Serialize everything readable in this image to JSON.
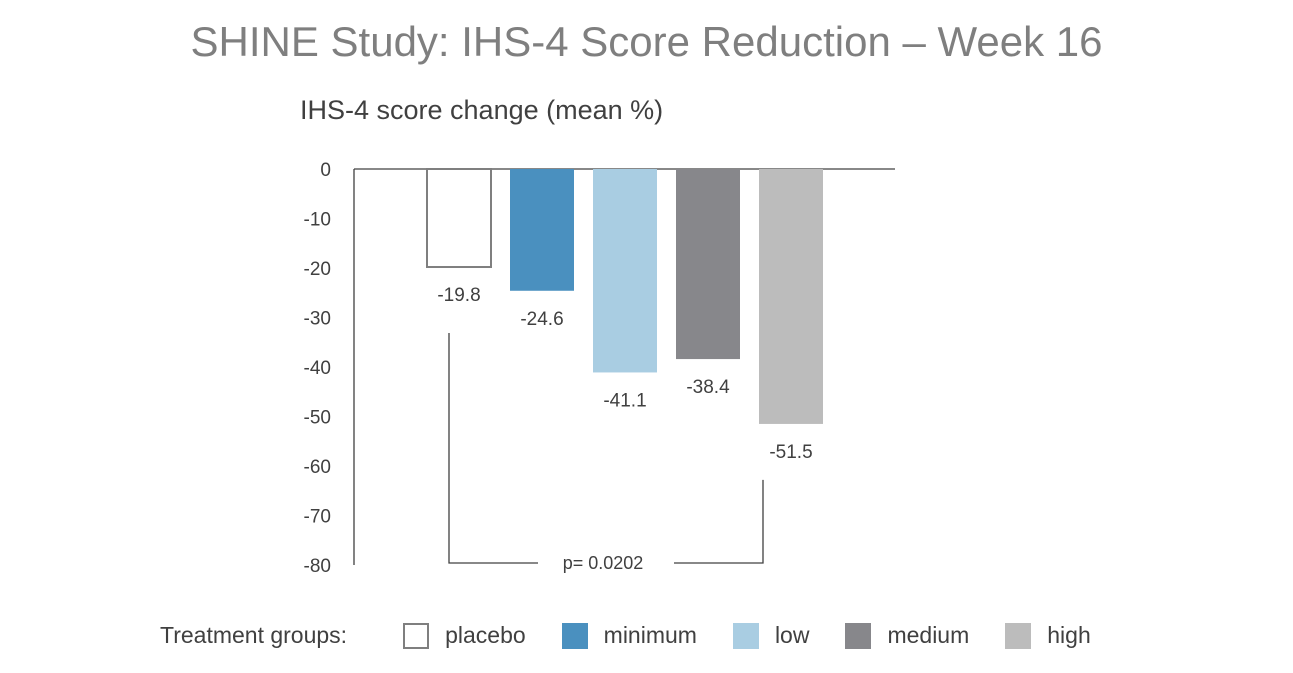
{
  "title": "SHINE Study:  IHS-4 Score Reduction – Week 16",
  "subtitle": "IHS-4 score change (mean %)",
  "legend": {
    "title": "Treatment groups:",
    "items": [
      {
        "label": "placebo",
        "color": "#ffffff",
        "border": "#7f7f7f"
      },
      {
        "label": "minimum",
        "color": "#4a90bf",
        "border": "#4a90bf"
      },
      {
        "label": "low",
        "color": "#a9cde2",
        "border": "#a9cde2"
      },
      {
        "label": "medium",
        "color": "#87878b",
        "border": "#87878b"
      },
      {
        "label": "high",
        "color": "#bcbcbc",
        "border": "#bcbcbc"
      }
    ]
  },
  "chart_data": {
    "type": "bar",
    "categories": [
      "placebo",
      "minimum",
      "low",
      "medium",
      "high"
    ],
    "values": [
      -19.8,
      -24.6,
      -41.1,
      -38.4,
      -51.5
    ],
    "data_labels": [
      "-19.8",
      "-24.6",
      "-41.1",
      "-38.4",
      "-51.5"
    ],
    "colors": [
      "#ffffff",
      "#4a90bf",
      "#a9cde2",
      "#87878b",
      "#bcbcbc"
    ],
    "ylim": [
      -80,
      0
    ],
    "yticks": [
      0,
      -10,
      -20,
      -30,
      -40,
      -50,
      -60,
      -70,
      -80
    ],
    "ylabel": "IHS-4 score change (mean %)",
    "annotation": {
      "text": "p= 0.0202",
      "from": "placebo",
      "to": "high"
    },
    "legend_position": "bottom",
    "grid": false
  }
}
